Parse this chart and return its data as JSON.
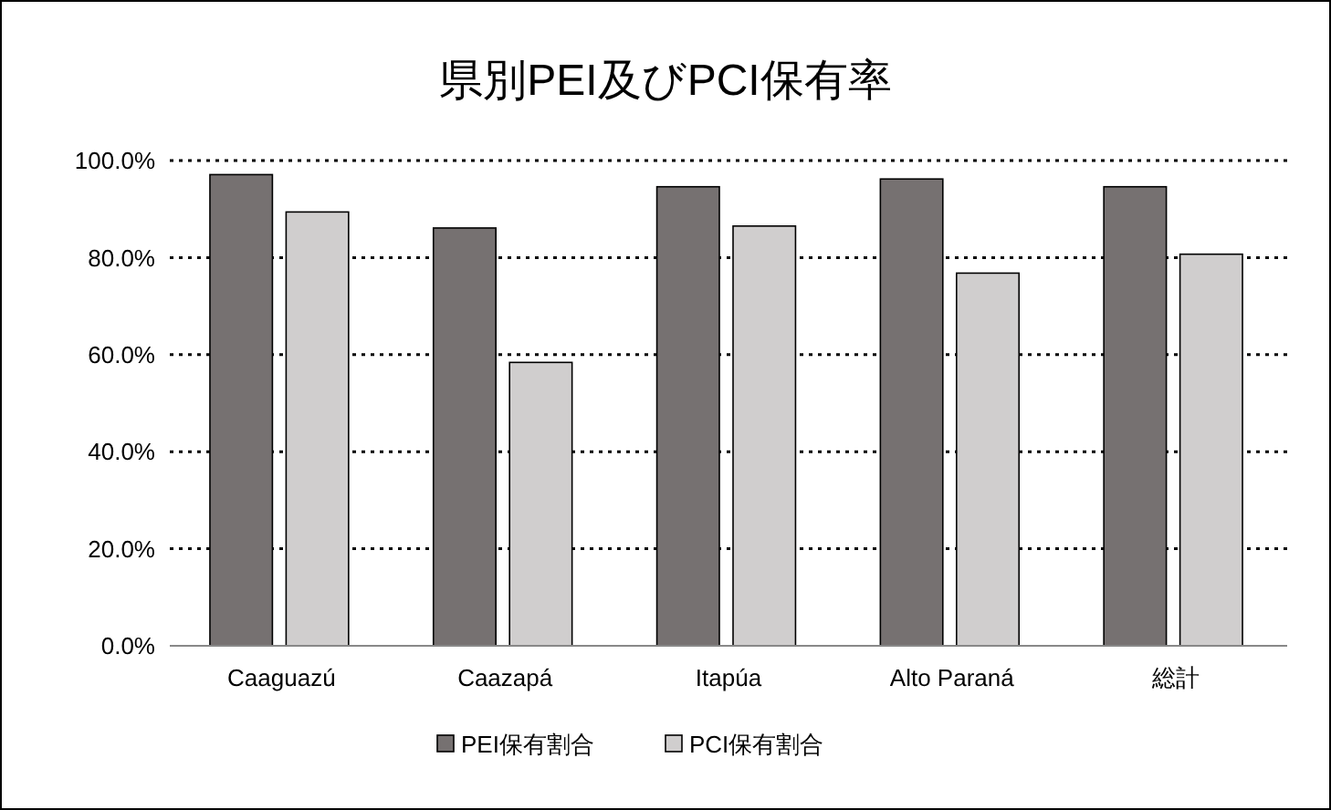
{
  "chart_data": {
    "type": "bar",
    "title": "県別PEI及びPCI保有率",
    "categories": [
      "Caaguazú",
      "Caazapá",
      "Itapúa",
      "Alto Paraná",
      "総計"
    ],
    "series": [
      {
        "name": "PEI保有割合",
        "color": "#767171",
        "values": [
          97.1,
          86.1,
          94.6,
          96.2,
          94.6
        ]
      },
      {
        "name": "PCI保有割合",
        "color": "#d0cece",
        "values": [
          89.4,
          58.4,
          86.5,
          76.8,
          80.7
        ]
      }
    ],
    "ylim": [
      0,
      100
    ],
    "yticks": [
      {
        "value": 0,
        "label": "0.0%"
      },
      {
        "value": 20,
        "label": "20.0%"
      },
      {
        "value": 40,
        "label": "40.0%"
      },
      {
        "value": 60,
        "label": "60.0%"
      },
      {
        "value": 80,
        "label": "80.0%"
      },
      {
        "value": 100,
        "label": "100.0%"
      }
    ],
    "grid": "y",
    "legend": "bottom"
  }
}
